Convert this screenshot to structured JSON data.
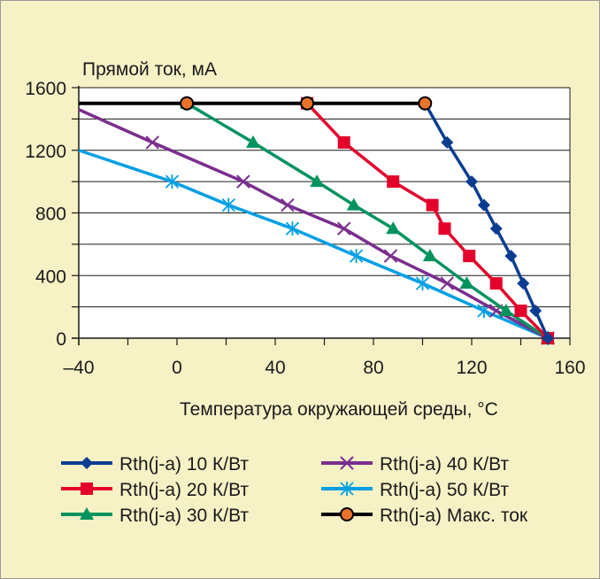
{
  "chart_data": {
    "type": "line",
    "title": "",
    "ylabel": "Прямой ток, мА",
    "xlabel": "Температура окружающей среды, °C",
    "xlim": [
      -40,
      160
    ],
    "ylim": [
      0,
      1600
    ],
    "x_ticks": [
      "–40",
      "0",
      "40",
      "80",
      "120",
      "160"
    ],
    "x_tick_values": [
      -40,
      0,
      40,
      80,
      120,
      160
    ],
    "y_ticks": [
      "0",
      "400",
      "800",
      "1200",
      "1600"
    ],
    "y_tick_values": [
      0,
      400,
      800,
      1200,
      1600
    ],
    "grid": "horizontal",
    "legend_position": "bottom",
    "series": [
      {
        "name": "Rth(j-a) 10 К/Вт",
        "color": "#0a3d91",
        "marker": "diamond",
        "points": [
          [
            101,
            1500
          ],
          [
            110,
            1250
          ],
          [
            120,
            1000
          ],
          [
            125,
            850
          ],
          [
            130,
            700
          ],
          [
            136,
            525
          ],
          [
            141,
            350
          ],
          [
            146,
            175
          ],
          [
            151,
            0
          ]
        ]
      },
      {
        "name": "Rth(j-a) 20 К/Вт",
        "color": "#e3002b",
        "marker": "square",
        "points": [
          [
            53,
            1500
          ],
          [
            68,
            1250
          ],
          [
            88,
            1000
          ],
          [
            104,
            850
          ],
          [
            109,
            700
          ],
          [
            119,
            525
          ],
          [
            130,
            350
          ],
          [
            140,
            175
          ],
          [
            151,
            0
          ]
        ]
      },
      {
        "name": "Rth(j-a) 30 К/Вт",
        "color": "#00935e",
        "marker": "triangle",
        "points": [
          [
            4,
            1500
          ],
          [
            31,
            1250
          ],
          [
            57,
            1000
          ],
          [
            72,
            850
          ],
          [
            88,
            700
          ],
          [
            103,
            525
          ],
          [
            118,
            350
          ],
          [
            134,
            175
          ],
          [
            151,
            0
          ]
        ]
      },
      {
        "name": "Rth(j-a) 40 К/Вт",
        "color": "#7a2e8e",
        "marker": "x",
        "points": [
          [
            -40,
            1460
          ],
          [
            -10,
            1250
          ],
          [
            27,
            1000
          ],
          [
            45,
            850
          ],
          [
            68,
            700
          ],
          [
            87,
            525
          ],
          [
            110,
            350
          ],
          [
            130,
            175
          ],
          [
            151,
            0
          ]
        ]
      },
      {
        "name": "Rth(j-a) 50 К/Вт",
        "color": "#009fe3",
        "marker": "asterisk",
        "points": [
          [
            -40,
            1200
          ],
          [
            -2,
            1000
          ],
          [
            21,
            850
          ],
          [
            47,
            700
          ],
          [
            73,
            525
          ],
          [
            100,
            350
          ],
          [
            125,
            175
          ],
          [
            151,
            0
          ]
        ]
      },
      {
        "name": "Rth(j-a) Макс. ток",
        "color": "#000000",
        "marker": "circle",
        "marker_fill": "#e8732a",
        "points": [
          [
            -40,
            1500
          ],
          [
            4,
            1500
          ],
          [
            53,
            1500
          ],
          [
            101,
            1500
          ]
        ]
      }
    ]
  }
}
